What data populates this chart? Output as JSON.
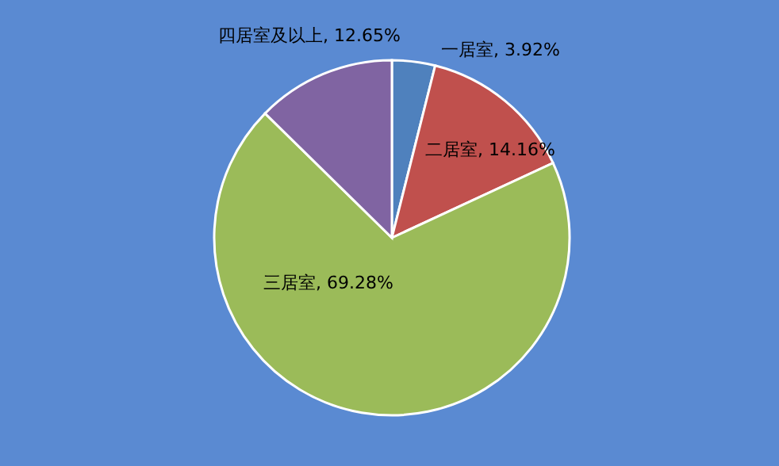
{
  "chart_data": {
    "type": "pie",
    "categories": [
      "一居室",
      "二居室",
      "三居室",
      "四居室及以上"
    ],
    "values": [
      3.92,
      14.16,
      69.28,
      12.65
    ],
    "value_labels": [
      "3.92%",
      "14.16%",
      "69.28%",
      "12.65%"
    ],
    "colors": [
      "#4f81bd",
      "#c0504d",
      "#9bbb59",
      "#8064a2"
    ],
    "legend": false
  }
}
